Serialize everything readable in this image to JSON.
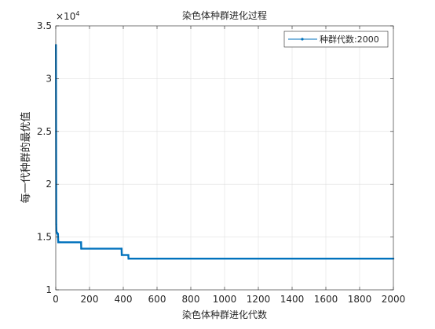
{
  "chart_data": {
    "type": "line",
    "title": "染色体种群进化过程",
    "xlabel": "染色体种群进化代数",
    "ylabel": "每一代种群的最优值",
    "exponent_label": "×10",
    "exponent_power": "4",
    "xlim": [
      0,
      2000
    ],
    "ylim": [
      1,
      3.5
    ],
    "y_scale_factor": 10000,
    "xticks": [
      0,
      200,
      400,
      600,
      800,
      1000,
      1200,
      1400,
      1600,
      1800,
      2000
    ],
    "xtick_labels": [
      "0",
      "200",
      "400",
      "600",
      "800",
      "1000",
      "1200",
      "1400",
      "1600",
      "1800",
      "2000"
    ],
    "yticks": [
      1,
      1.5,
      2,
      2.5,
      3,
      3.5
    ],
    "ytick_labels": [
      "1",
      "1.5",
      "2",
      "2.5",
      "3",
      "3.5"
    ],
    "grid": true,
    "legend_position": "top-right",
    "series": [
      {
        "name": "种群代数:2000",
        "color": "#0072BD",
        "x": [
          1,
          2,
          3,
          4,
          6,
          8,
          10,
          13,
          15,
          20,
          25,
          150,
          151,
          390,
          391,
          430,
          431,
          2000
        ],
        "y": [
          33200,
          25000,
          16200,
          15600,
          15400,
          15400,
          15300,
          15300,
          14500,
          14500,
          14500,
          14500,
          13900,
          13900,
          13300,
          13300,
          12950,
          12950
        ]
      }
    ]
  }
}
